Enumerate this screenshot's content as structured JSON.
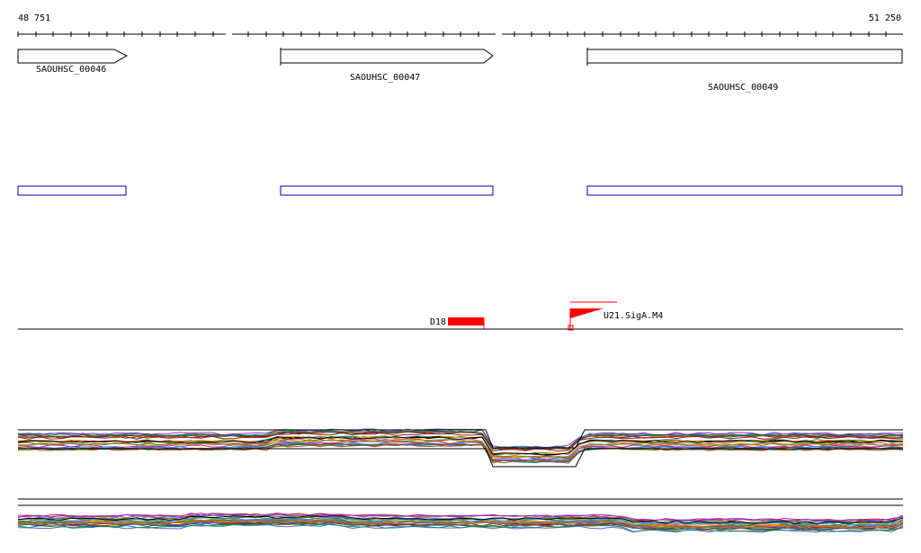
{
  "ruler": {
    "start_label": "48 751",
    "end_label": "51 250"
  },
  "genes": [
    {
      "label": "SAOUHSC_00046"
    },
    {
      "label": "SAOUHSC_00047"
    },
    {
      "label": "SAOUHSC_00049"
    }
  ],
  "features": {
    "d18_label": "D18",
    "promoter_label": "U21.SigA.M4"
  },
  "colors": {
    "gene_outline": "#000000",
    "cds_box": "#0000aa",
    "feature_red": "#ff0000",
    "background": "#ffffff",
    "trace_palette": [
      "#000000",
      "#8b1a1a",
      "#2e8b57",
      "#6a5acd",
      "#d2691e",
      "#808000",
      "#008b8b",
      "#c71585",
      "#556b2f",
      "#b8860b",
      "#4682b4",
      "#a0522d",
      "#228b22",
      "#9932cc",
      "#ff8c00",
      "#2f4f4f",
      "#cd5c5c",
      "#6b8e23",
      "#1e90ff",
      "#8b4513"
    ]
  }
}
